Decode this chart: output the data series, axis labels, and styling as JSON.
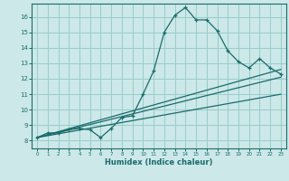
{
  "xlabel": "Humidex (Indice chaleur)",
  "ylabel": "",
  "xlim": [
    -0.5,
    23.5
  ],
  "ylim": [
    7.5,
    16.85
  ],
  "yticks": [
    8,
    9,
    10,
    11,
    12,
    13,
    14,
    15,
    16
  ],
  "xticks": [
    0,
    1,
    2,
    3,
    4,
    5,
    6,
    7,
    8,
    9,
    10,
    11,
    12,
    13,
    14,
    15,
    16,
    17,
    18,
    19,
    20,
    21,
    22,
    23
  ],
  "bg_color": "#cce8e8",
  "grid_color": "#99cccc",
  "line_color": "#1a6b6b",
  "main_data_x": [
    0,
    1,
    2,
    3,
    4,
    5,
    6,
    7,
    8,
    9,
    10,
    11,
    12,
    13,
    14,
    15,
    16,
    17,
    18,
    19,
    20,
    21,
    22,
    23
  ],
  "main_data_y": [
    8.2,
    8.5,
    8.5,
    8.7,
    8.8,
    8.7,
    8.2,
    8.8,
    9.5,
    9.6,
    11.0,
    12.5,
    15.0,
    16.1,
    16.6,
    15.8,
    15.8,
    15.1,
    13.8,
    13.1,
    12.7,
    13.3,
    12.7,
    12.3
  ],
  "trend1_x": [
    0,
    23
  ],
  "trend1_y": [
    8.2,
    12.1
  ],
  "trend2_x": [
    0,
    23
  ],
  "trend2_y": [
    8.2,
    11.0
  ],
  "trend3_x": [
    0,
    23
  ],
  "trend3_y": [
    8.2,
    12.6
  ]
}
